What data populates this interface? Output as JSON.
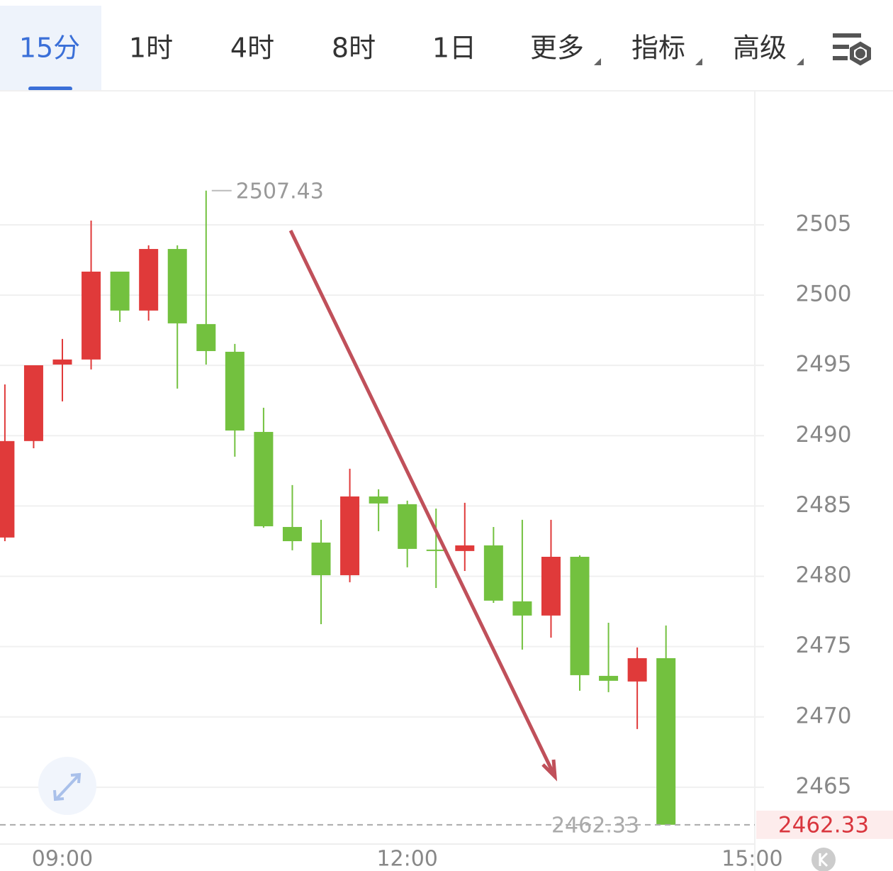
{
  "tabs": [
    "15分",
    "1时",
    "4时",
    "8时",
    "1日",
    "更多",
    "指标",
    "高级"
  ],
  "chart_data": {
    "type": "candlestick",
    "x": [
      0,
      1,
      2,
      3,
      4,
      5,
      6,
      7,
      8,
      9,
      10,
      11,
      12,
      13,
      14,
      15,
      16,
      17,
      18,
      19,
      20,
      21,
      22,
      23
    ],
    "open": [
      2482.76,
      2489.62,
      2495.06,
      2495.42,
      2501.67,
      2498.9,
      2503.28,
      2497.94,
      2495.97,
      2490.27,
      2483.51,
      2482.4,
      2480.08,
      2485.68,
      2485.13,
      2481.9,
      2481.8,
      2482.2,
      2478.22,
      2477.21,
      2481.39,
      2472.92,
      2472.52,
      2474.18
    ],
    "high": [
      2493.65,
      2495.01,
      2496.88,
      2505.3,
      2501.67,
      2503.54,
      2503.54,
      2507.43,
      2496.53,
      2491.99,
      2486.49,
      2484.02,
      2487.65,
      2486.19,
      2485.38,
      2484.82,
      2485.23,
      2483.51,
      2484.02,
      2484.02,
      2481.49,
      2476.7,
      2474.94,
      2476.5
    ],
    "low": [
      2482.5,
      2489.11,
      2492.44,
      2494.71,
      2498.09,
      2498.19,
      2493.35,
      2495.06,
      2488.51,
      2483.46,
      2481.85,
      2476.6,
      2479.58,
      2483.21,
      2480.64,
      2479.17,
      2480.38,
      2478.11,
      2474.79,
      2475.64,
      2471.86,
      2471.76,
      2469.14,
      2462.33
    ],
    "close": [
      2489.62,
      2495.01,
      2495.42,
      2501.67,
      2498.9,
      2503.28,
      2497.99,
      2496.02,
      2490.37,
      2483.56,
      2482.5,
      2480.08,
      2485.68,
      2485.18,
      2481.95,
      2481.8,
      2482.2,
      2478.27,
      2477.21,
      2481.39,
      2472.97,
      2472.57,
      2474.18,
      2462.33
    ],
    "up_color": "#e03a3a",
    "down_color": "#73c13f",
    "xlim": [
      -0.17,
      26.09
    ],
    "xticks": [
      {
        "value": 2,
        "label": "09:00"
      },
      {
        "value": 14,
        "label": "12:00"
      },
      {
        "value": 26,
        "label": "15:00"
      }
    ],
    "ylim": [
      2460.96,
      2514.43
    ],
    "yticks": [
      2465,
      2470,
      2475,
      2480,
      2485,
      2490,
      2495,
      2500,
      2505
    ],
    "grid": true
  }
}
